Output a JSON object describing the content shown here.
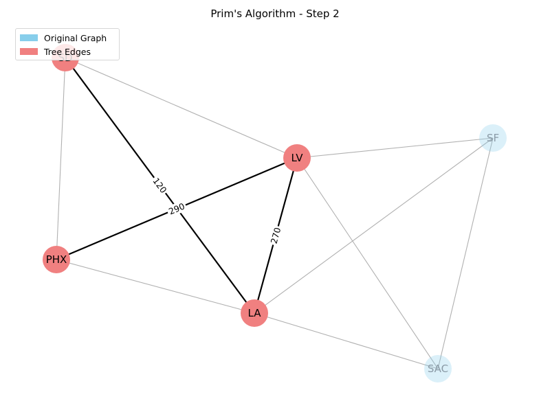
{
  "title": "Prim's Algorithm - Step 2",
  "colors": {
    "original_node": "#87ceeb",
    "tree_node": "#f08080",
    "tree_edge": "#000000",
    "original_edge": "#b0b0b0",
    "faded_label": "#8a9aa6"
  },
  "legend": [
    {
      "label": "Original Graph",
      "color": "#87ceeb"
    },
    {
      "label": "Tree Edges",
      "color": "#f08080"
    }
  ],
  "nodes": [
    {
      "id": "SD",
      "label": "SD",
      "in_tree": true
    },
    {
      "id": "LV",
      "label": "LV",
      "in_tree": true
    },
    {
      "id": "SF",
      "label": "SF",
      "in_tree": false
    },
    {
      "id": "PHX",
      "label": "PHX",
      "in_tree": true
    },
    {
      "id": "LA",
      "label": "LA",
      "in_tree": true
    },
    {
      "id": "SAC",
      "label": "SAC",
      "in_tree": false
    }
  ],
  "edges": [
    {
      "from": "SD",
      "to": "LV",
      "tree": false
    },
    {
      "from": "SD",
      "to": "PHX",
      "tree": false
    },
    {
      "from": "LV",
      "to": "SF",
      "tree": false
    },
    {
      "from": "LV",
      "to": "SAC",
      "tree": false
    },
    {
      "from": "PHX",
      "to": "LA",
      "tree": false
    },
    {
      "from": "LA",
      "to": "SF",
      "tree": false
    },
    {
      "from": "LA",
      "to": "SAC",
      "tree": false
    },
    {
      "from": "SF",
      "to": "SAC",
      "tree": false
    },
    {
      "from": "SD",
      "to": "LA",
      "tree": true,
      "weight": "120"
    },
    {
      "from": "PHX",
      "to": "LV",
      "tree": true,
      "weight": "290"
    },
    {
      "from": "LV",
      "to": "LA",
      "tree": true,
      "weight": "270"
    }
  ]
}
